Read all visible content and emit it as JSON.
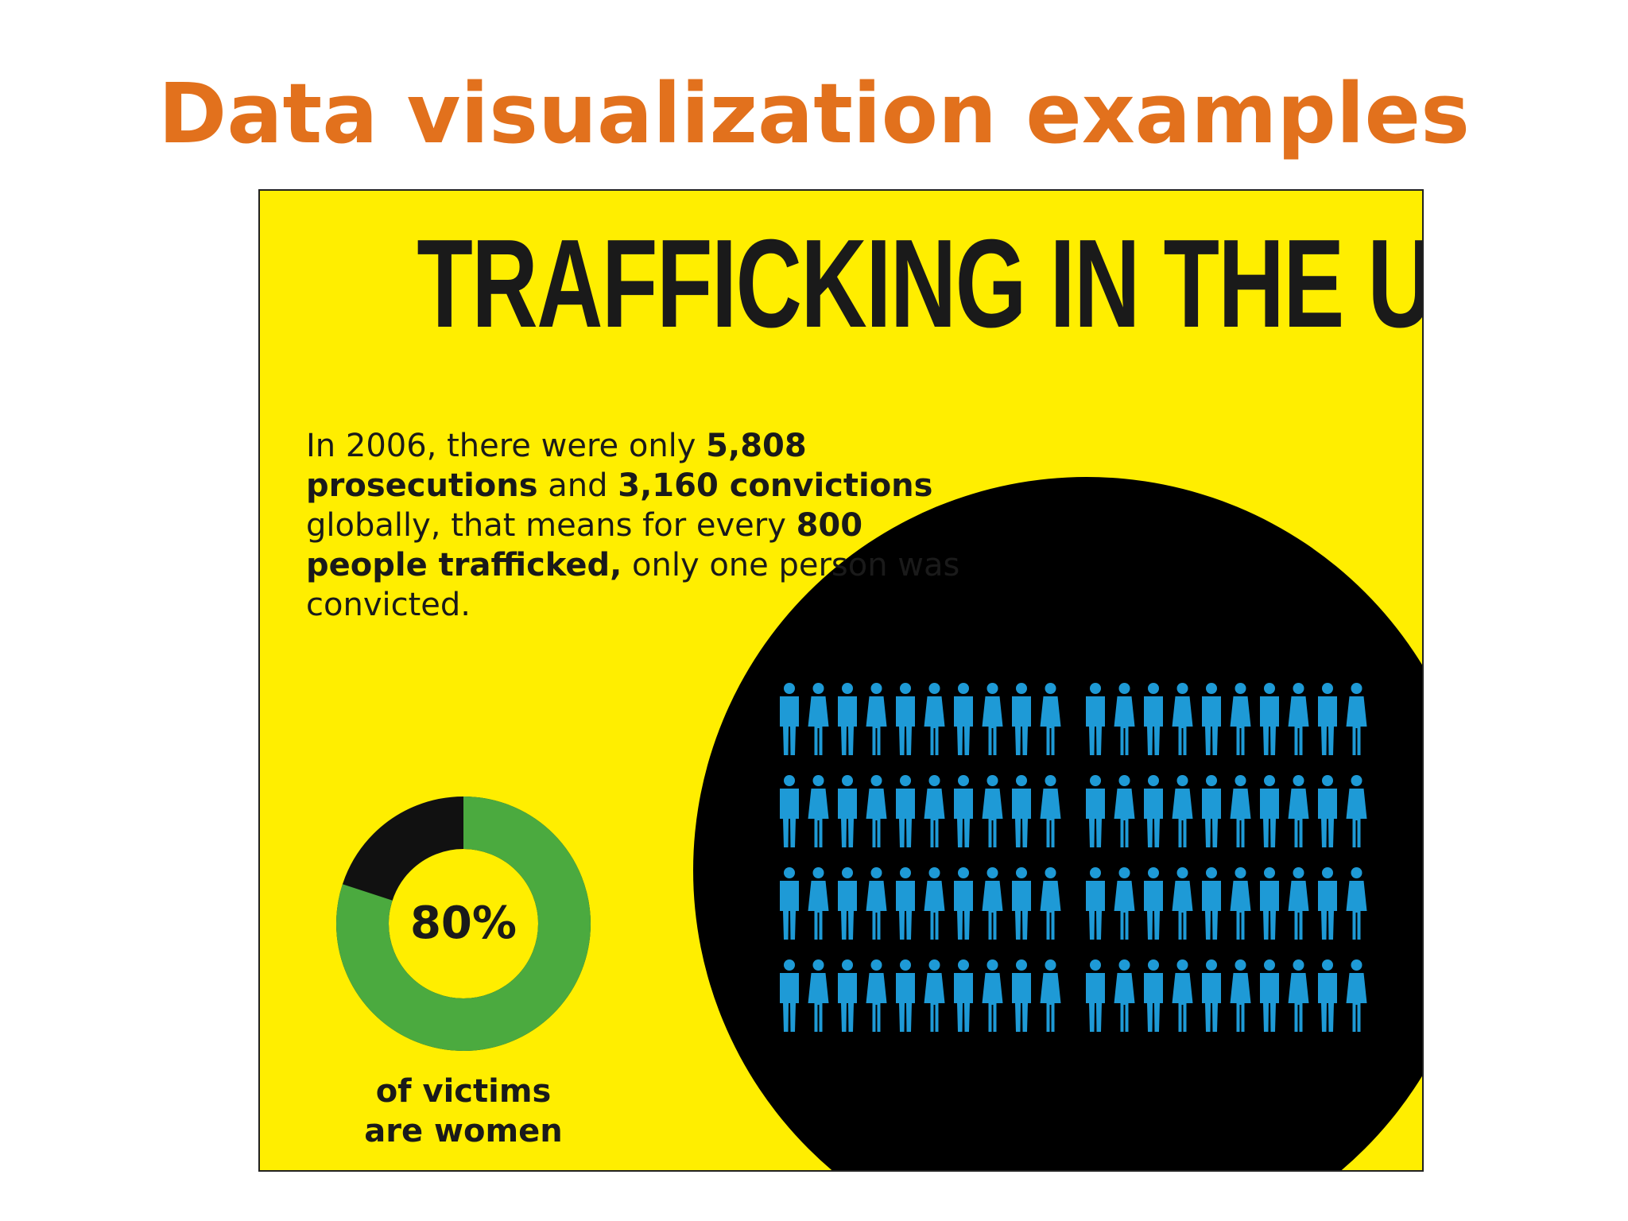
{
  "slide": {
    "title": "Data visualization examples"
  },
  "infographic": {
    "heading": "TRAFFICKING IN THE US",
    "statement": {
      "part1": "In 2006, there were only ",
      "prosecutions": "5,808 prosecutions",
      "part2": " and ",
      "convictions": "3,160 convictions",
      "part3": " globally, that means for every ",
      "ratio": "800 people trafficked,",
      "part4": " only one person was convicted."
    },
    "donut": {
      "value_label": "80%",
      "caption_line1": "of victims",
      "caption_line2": "are women",
      "fraction": 0.8
    },
    "people_grid": {
      "rows": 4,
      "per_block": 10,
      "blocks": 2
    }
  },
  "colors": {
    "title_orange": "#E2711D",
    "background_yellow": "#FFEE00",
    "circle_black": "#000000",
    "figure_blue": "#1E9AD6",
    "donut_green": "#4BAA3F",
    "donut_black": "#111111",
    "text_dark": "#1a1a1a"
  }
}
